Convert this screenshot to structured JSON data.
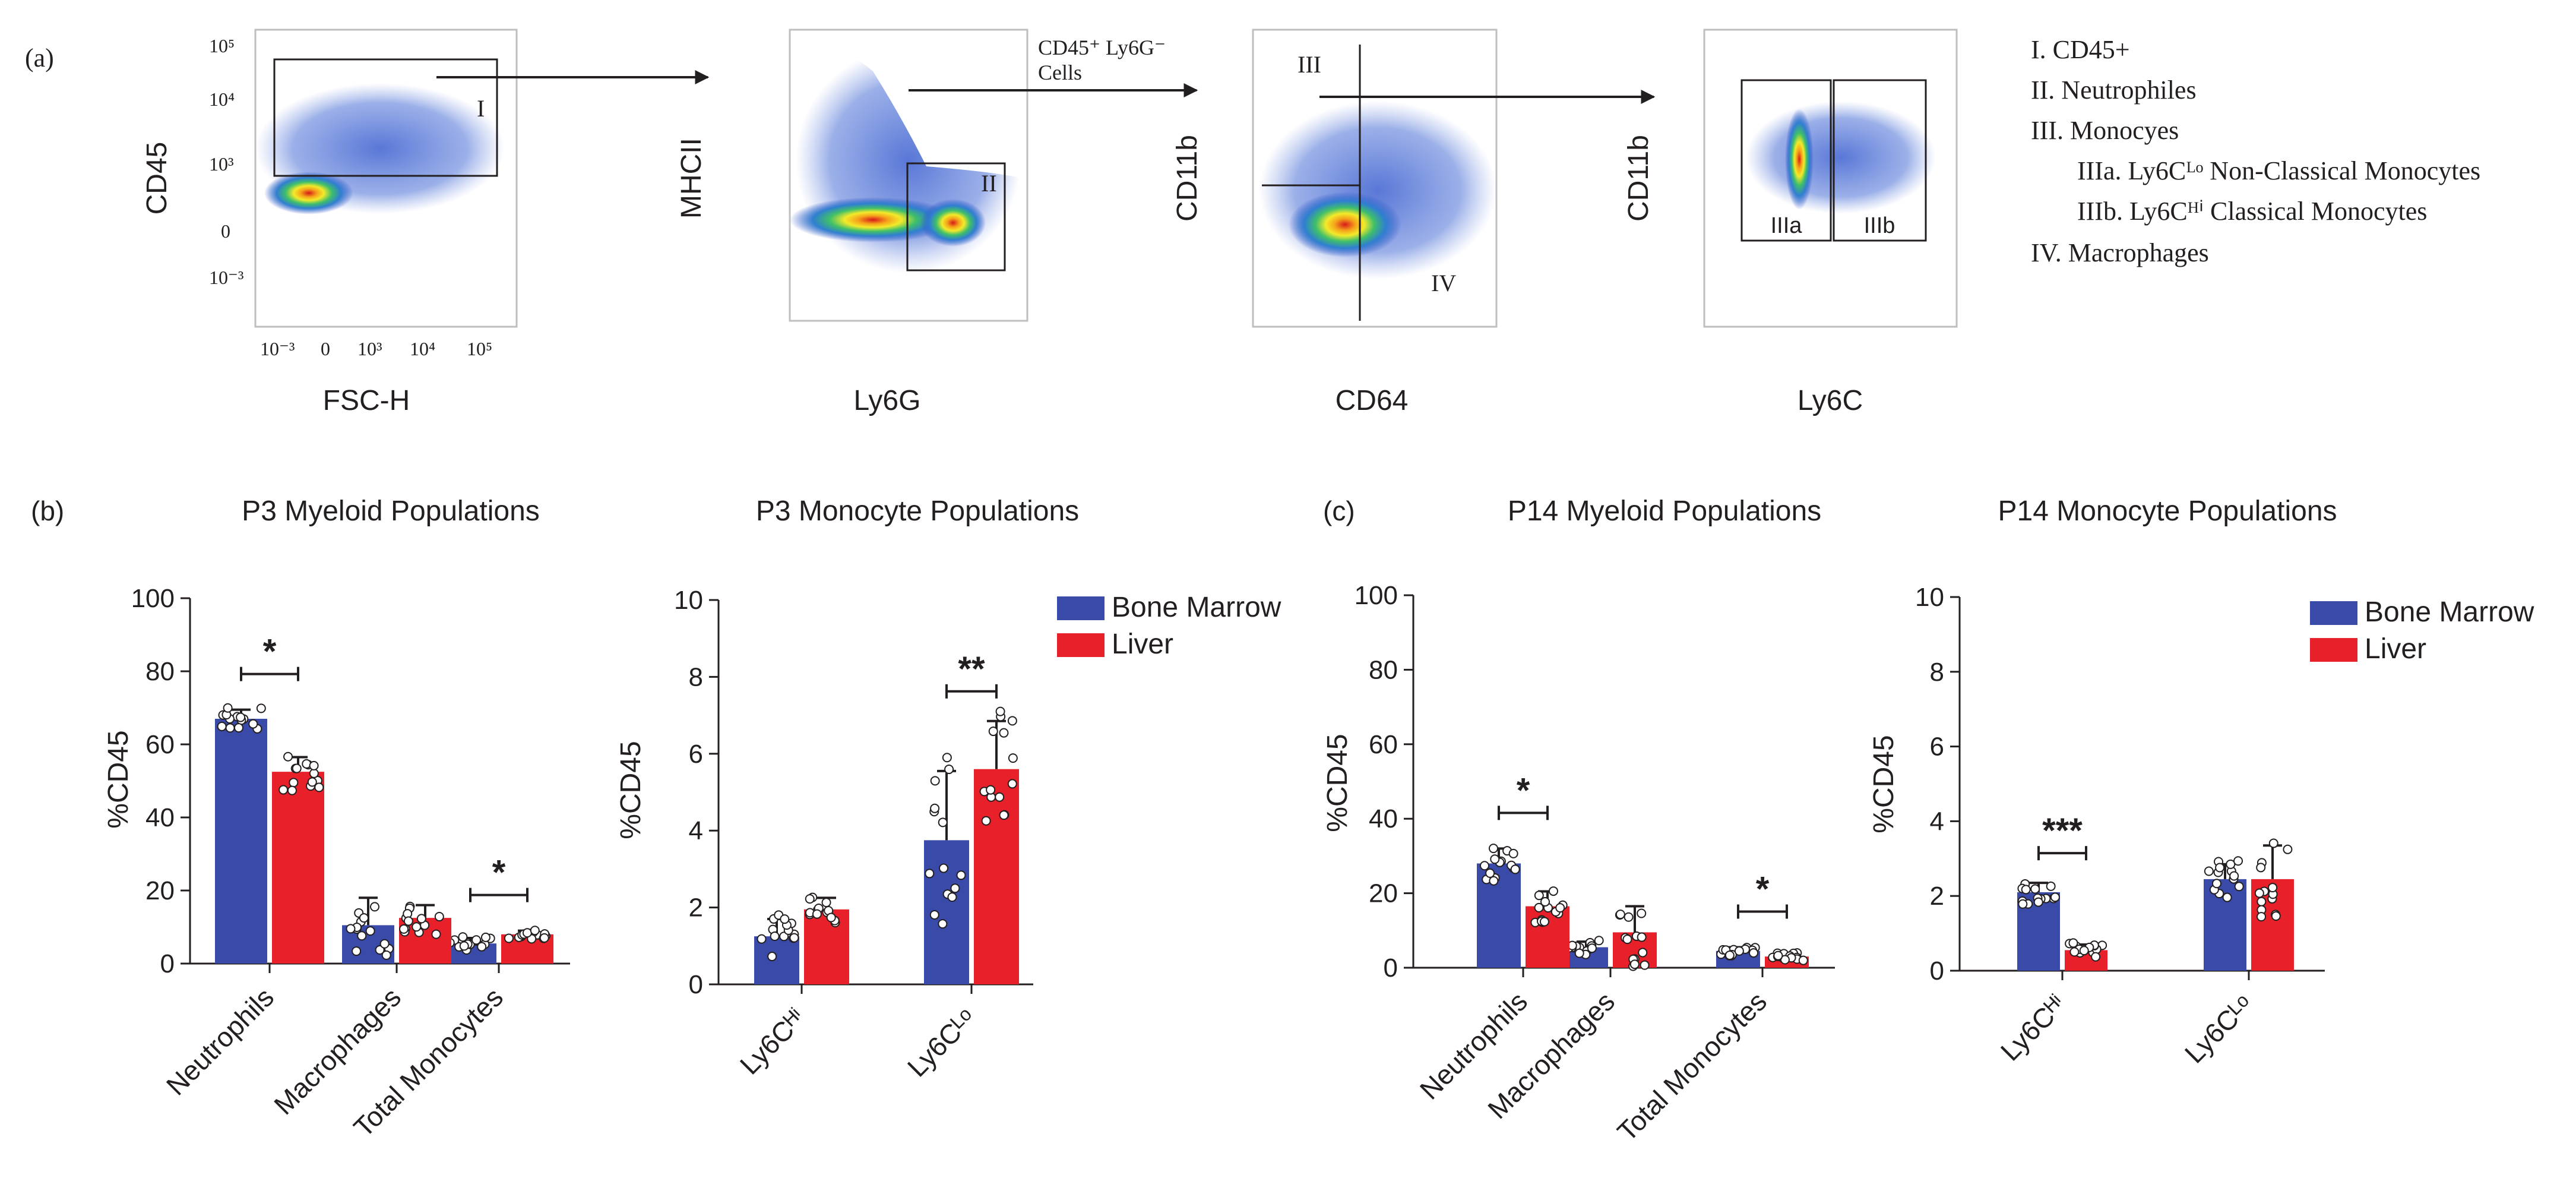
{
  "panels": {
    "a_label": "(a)",
    "b_label": "(b)",
    "c_label": "(c)"
  },
  "flow": {
    "plots": [
      {
        "xlabel": "FSC-H",
        "ylabel": "CD45",
        "xticks": [
          "10⁻³",
          "0",
          "10³",
          "10⁴",
          "10⁵"
        ],
        "yticks": [
          "10⁵",
          "10⁴",
          "10³",
          "0",
          "10⁻³"
        ],
        "gates": [
          "I"
        ]
      },
      {
        "xlabel": "Ly6G",
        "ylabel": "MHCII",
        "xticks": [],
        "yticks": [],
        "gates": [
          "II"
        ]
      },
      {
        "xlabel": "CD64",
        "ylabel": "CD11b",
        "xticks": [],
        "yticks": [],
        "gates": [
          "III",
          "IV"
        ]
      },
      {
        "xlabel": "Ly6C",
        "ylabel": "CD11b",
        "xticks": [],
        "yticks": [],
        "gates": [
          "IIIa",
          "IIIb"
        ]
      }
    ],
    "arrow_label_line1": "CD45⁺ Ly6G⁻",
    "arrow_label_line2": "Cells"
  },
  "gate_legend": {
    "items": [
      {
        "text": "I. CD45+",
        "indent": false
      },
      {
        "text": "II. Neutrophiles",
        "indent": false
      },
      {
        "text": "III. Monocyes",
        "indent": false
      },
      {
        "text": "IIIa. Ly6Cᴸᵒ Non-Classical Monocytes",
        "indent": true
      },
      {
        "text": "IIIb. Ly6Cᴴⁱ Classical Monocytes",
        "indent": true
      },
      {
        "text": "IV. Macrophages",
        "indent": false
      }
    ]
  },
  "legend": {
    "bone_marrow": "Bone Marrow",
    "liver": "Liver"
  },
  "colors": {
    "bone_marrow": "#3a4aa8",
    "liver": "#e8202a"
  },
  "chart_data": [
    {
      "type": "bar",
      "title": "P3 Myeloid Populations",
      "ylabel": "%CD45",
      "ylim": [
        0,
        100
      ],
      "yticks": [
        0,
        20,
        40,
        60,
        80,
        100
      ],
      "categories": [
        "Neutrophils",
        "Macrophages",
        "Total Monocytes"
      ],
      "series": [
        {
          "name": "Bone Marrow",
          "values": [
            67,
            10.5,
            5.5
          ],
          "errors": [
            2.5,
            7.5,
            1.5
          ]
        },
        {
          "name": "Liver",
          "values": [
            52.5,
            12.5,
            8
          ],
          "errors": [
            4,
            3.5,
            1
          ]
        }
      ],
      "significance": [
        {
          "category": "Neutrophils",
          "label": "*"
        },
        {
          "category": "Total Monocytes",
          "label": "*"
        }
      ]
    },
    {
      "type": "bar",
      "title": "P3 Monocyte Populations",
      "ylabel": "%CD45",
      "ylim": [
        0,
        10
      ],
      "yticks": [
        0,
        2,
        4,
        6,
        8,
        10
      ],
      "categories": [
        "Ly6Cᴴⁱ",
        "Ly6Cᴸᵒ"
      ],
      "series": [
        {
          "name": "Bone Marrow",
          "values": [
            1.25,
            3.75
          ],
          "errors": [
            0.45,
            1.8
          ]
        },
        {
          "name": "Liver",
          "values": [
            1.95,
            5.6
          ],
          "errors": [
            0.3,
            1.25
          ]
        }
      ],
      "significance": [
        {
          "category": "Ly6Cᴸᵒ",
          "label": "**"
        }
      ]
    },
    {
      "type": "bar",
      "title": "P14 Myeloid Populations",
      "ylabel": "%CD45",
      "ylim": [
        0,
        100
      ],
      "yticks": [
        0,
        20,
        40,
        60,
        80,
        100
      ],
      "categories": [
        "Neutrophils",
        "Macrophages",
        "Total Monocytes"
      ],
      "series": [
        {
          "name": "Bone Marrow",
          "values": [
            28,
            5.5,
            4.5
          ],
          "errors": [
            4,
            1.5,
            1
          ]
        },
        {
          "name": "Liver",
          "values": [
            16.5,
            9.5,
            3
          ],
          "errors": [
            4,
            7,
            0.8
          ]
        }
      ],
      "significance": [
        {
          "category": "Neutrophils",
          "label": "*"
        },
        {
          "category": "Total Monocytes",
          "label": "*"
        }
      ]
    },
    {
      "type": "bar",
      "title": "P14 Monocyte Populations",
      "ylabel": "%CD45",
      "ylim": [
        0,
        10
      ],
      "yticks": [
        0,
        2,
        4,
        6,
        8,
        10
      ],
      "categories": [
        "Ly6Cᴴⁱ",
        "Ly6Cᴸᵒ"
      ],
      "series": [
        {
          "name": "Bone Marrow",
          "values": [
            2.1,
            2.45
          ],
          "errors": [
            0.25,
            0.4
          ]
        },
        {
          "name": "Liver",
          "values": [
            0.55,
            2.45
          ],
          "errors": [
            0.15,
            0.9
          ]
        }
      ],
      "significance": [
        {
          "category": "Ly6Cᴴⁱ",
          "label": "***"
        }
      ]
    }
  ]
}
